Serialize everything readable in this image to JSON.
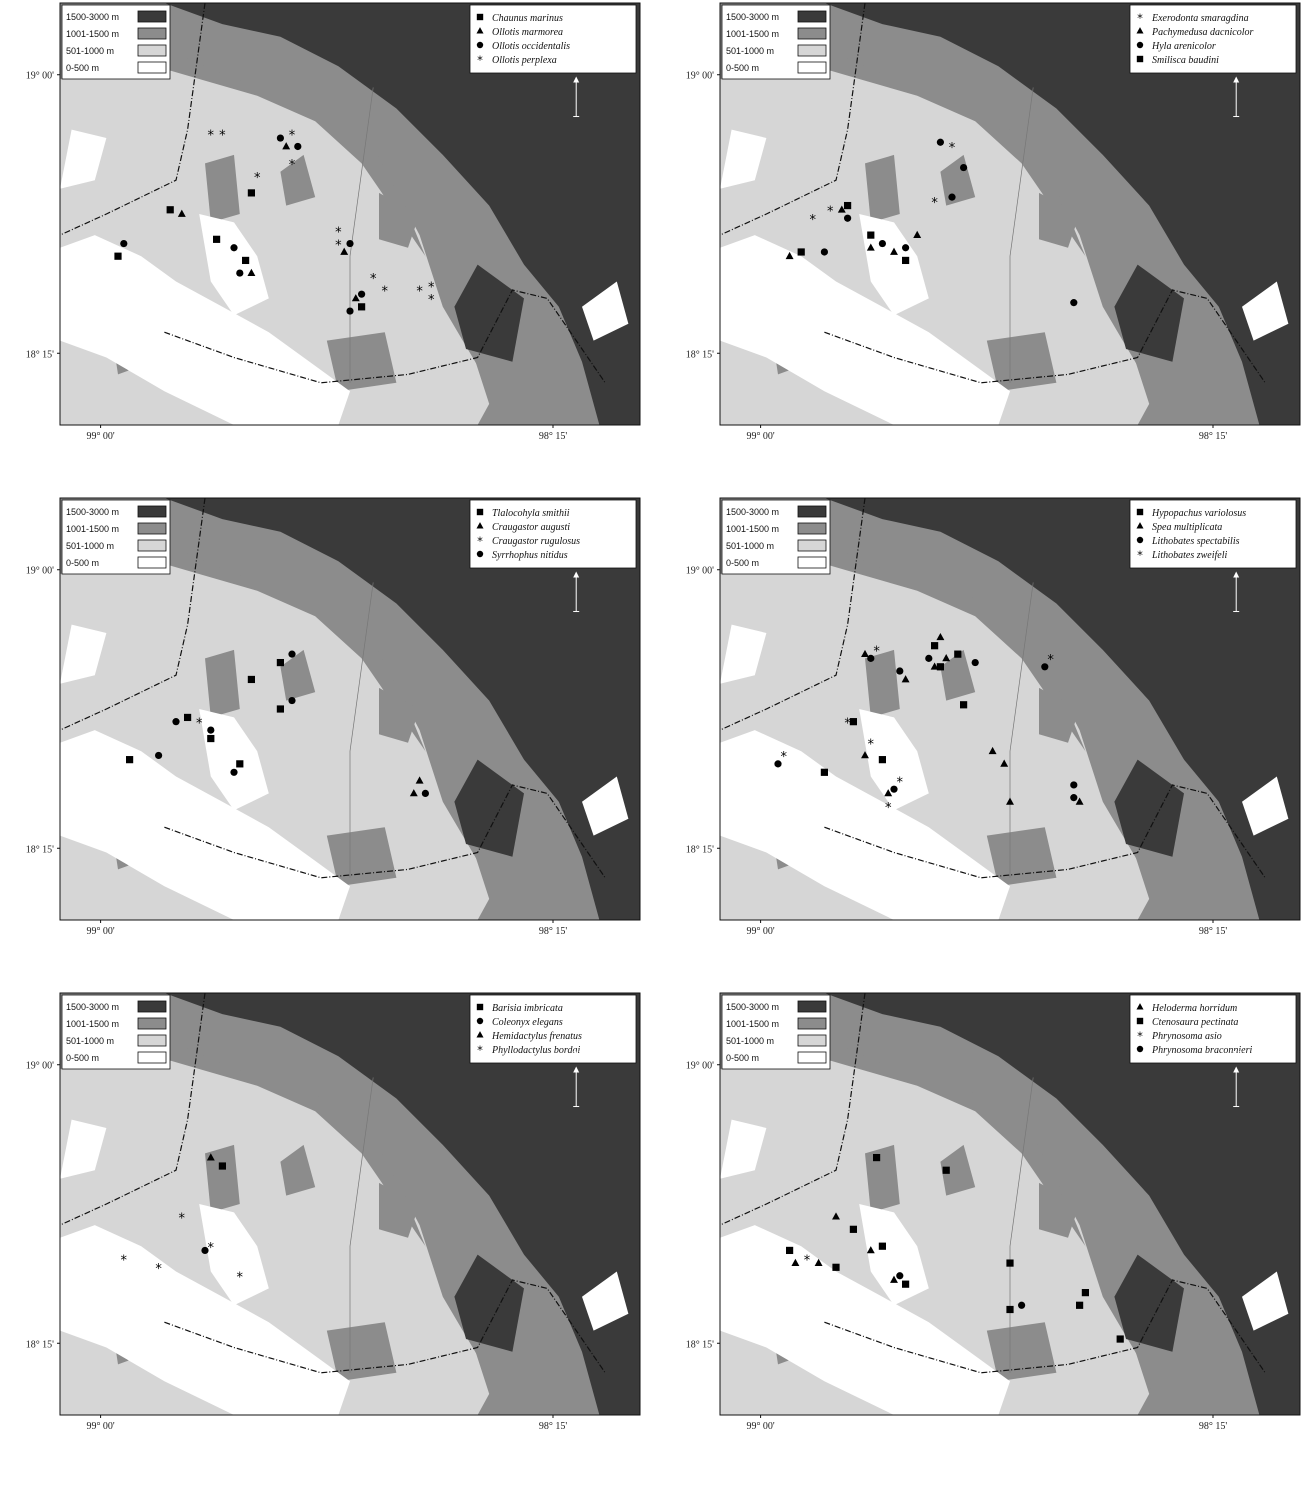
{
  "elevation_legend": [
    {
      "label": "1500-3000 m",
      "color": "#3a3a3a"
    },
    {
      "label": "1001-1500 m",
      "color": "#8c8c8c"
    },
    {
      "label": "501-1000 m",
      "color": "#d6d6d6"
    },
    {
      "label": "0-500 m",
      "color": "#ffffff"
    }
  ],
  "north_label": "N",
  "axes": {
    "lat_labels": [
      "19° 00'",
      "18° 15'"
    ],
    "lon_labels": [
      "99° 00'",
      "98° 15'"
    ]
  },
  "panels": [
    {
      "species": [
        {
          "symbol": "square",
          "name": "Chaunus marinus"
        },
        {
          "symbol": "triangle",
          "name": "Ollotis marmorea"
        },
        {
          "symbol": "circle",
          "name": "Ollotis occidentalis"
        },
        {
          "symbol": "star",
          "name": "Ollotis perplexa"
        }
      ],
      "points": [
        {
          "s": "square",
          "x": 0.1,
          "y": 0.6
        },
        {
          "s": "circle",
          "x": 0.11,
          "y": 0.57
        },
        {
          "s": "square",
          "x": 0.19,
          "y": 0.49
        },
        {
          "s": "triangle",
          "x": 0.21,
          "y": 0.5
        },
        {
          "s": "square",
          "x": 0.27,
          "y": 0.56
        },
        {
          "s": "circle",
          "x": 0.3,
          "y": 0.58
        },
        {
          "s": "square",
          "x": 0.32,
          "y": 0.61
        },
        {
          "s": "circle",
          "x": 0.31,
          "y": 0.64
        },
        {
          "s": "triangle",
          "x": 0.33,
          "y": 0.64
        },
        {
          "s": "square",
          "x": 0.33,
          "y": 0.45
        },
        {
          "s": "star",
          "x": 0.34,
          "y": 0.41
        },
        {
          "s": "star",
          "x": 0.26,
          "y": 0.31
        },
        {
          "s": "star",
          "x": 0.28,
          "y": 0.31
        },
        {
          "s": "circle",
          "x": 0.38,
          "y": 0.32
        },
        {
          "s": "star",
          "x": 0.4,
          "y": 0.31
        },
        {
          "s": "triangle",
          "x": 0.39,
          "y": 0.34
        },
        {
          "s": "circle",
          "x": 0.41,
          "y": 0.34
        },
        {
          "s": "star",
          "x": 0.4,
          "y": 0.38
        },
        {
          "s": "star",
          "x": 0.48,
          "y": 0.54
        },
        {
          "s": "star",
          "x": 0.48,
          "y": 0.57
        },
        {
          "s": "triangle",
          "x": 0.49,
          "y": 0.59
        },
        {
          "s": "circle",
          "x": 0.5,
          "y": 0.57
        },
        {
          "s": "star",
          "x": 0.54,
          "y": 0.65
        },
        {
          "s": "star",
          "x": 0.56,
          "y": 0.68
        },
        {
          "s": "triangle",
          "x": 0.51,
          "y": 0.7
        },
        {
          "s": "circle",
          "x": 0.52,
          "y": 0.69
        },
        {
          "s": "square",
          "x": 0.52,
          "y": 0.72
        },
        {
          "s": "circle",
          "x": 0.5,
          "y": 0.73
        },
        {
          "s": "star",
          "x": 0.62,
          "y": 0.68
        },
        {
          "s": "star",
          "x": 0.64,
          "y": 0.67
        },
        {
          "s": "star",
          "x": 0.64,
          "y": 0.7
        }
      ]
    },
    {
      "species": [
        {
          "symbol": "star",
          "name": "Exerodonta smaragdina"
        },
        {
          "symbol": "triangle",
          "name": "Pachymedusa dacnicolor"
        },
        {
          "symbol": "circle",
          "name": "Hyla arenicolor"
        },
        {
          "symbol": "square",
          "name": "Smilisca baudini"
        }
      ],
      "points": [
        {
          "s": "triangle",
          "x": 0.12,
          "y": 0.6
        },
        {
          "s": "square",
          "x": 0.14,
          "y": 0.59
        },
        {
          "s": "circle",
          "x": 0.18,
          "y": 0.59
        },
        {
          "s": "star",
          "x": 0.16,
          "y": 0.51
        },
        {
          "s": "star",
          "x": 0.19,
          "y": 0.49
        },
        {
          "s": "triangle",
          "x": 0.21,
          "y": 0.49
        },
        {
          "s": "circle",
          "x": 0.22,
          "y": 0.51
        },
        {
          "s": "square",
          "x": 0.22,
          "y": 0.48
        },
        {
          "s": "square",
          "x": 0.26,
          "y": 0.55
        },
        {
          "s": "triangle",
          "x": 0.26,
          "y": 0.58
        },
        {
          "s": "circle",
          "x": 0.28,
          "y": 0.57
        },
        {
          "s": "triangle",
          "x": 0.3,
          "y": 0.59
        },
        {
          "s": "circle",
          "x": 0.32,
          "y": 0.58
        },
        {
          "s": "square",
          "x": 0.32,
          "y": 0.61
        },
        {
          "s": "triangle",
          "x": 0.34,
          "y": 0.55
        },
        {
          "s": "circle",
          "x": 0.38,
          "y": 0.33
        },
        {
          "s": "star",
          "x": 0.4,
          "y": 0.34
        },
        {
          "s": "circle",
          "x": 0.42,
          "y": 0.39
        },
        {
          "s": "circle",
          "x": 0.4,
          "y": 0.46
        },
        {
          "s": "star",
          "x": 0.37,
          "y": 0.47
        },
        {
          "s": "circle",
          "x": 0.61,
          "y": 0.71
        }
      ]
    },
    {
      "species": [
        {
          "symbol": "square",
          "name": "Tlalocohyla smithii"
        },
        {
          "symbol": "triangle",
          "name": "Craugastor augusti"
        },
        {
          "symbol": "star",
          "name": "Craugastor rugulosus"
        },
        {
          "symbol": "circle",
          "name": "Syrrhophus nitidus"
        }
      ],
      "points": [
        {
          "s": "square",
          "x": 0.12,
          "y": 0.62
        },
        {
          "s": "circle",
          "x": 0.17,
          "y": 0.61
        },
        {
          "s": "circle",
          "x": 0.2,
          "y": 0.53
        },
        {
          "s": "square",
          "x": 0.22,
          "y": 0.52
        },
        {
          "s": "star",
          "x": 0.24,
          "y": 0.53
        },
        {
          "s": "circle",
          "x": 0.26,
          "y": 0.55
        },
        {
          "s": "square",
          "x": 0.26,
          "y": 0.57
        },
        {
          "s": "circle",
          "x": 0.3,
          "y": 0.65
        },
        {
          "s": "square",
          "x": 0.31,
          "y": 0.63
        },
        {
          "s": "square",
          "x": 0.33,
          "y": 0.43
        },
        {
          "s": "square",
          "x": 0.38,
          "y": 0.39
        },
        {
          "s": "circle",
          "x": 0.4,
          "y": 0.37
        },
        {
          "s": "square",
          "x": 0.38,
          "y": 0.5
        },
        {
          "s": "circle",
          "x": 0.4,
          "y": 0.48
        },
        {
          "s": "triangle",
          "x": 0.61,
          "y": 0.7
        },
        {
          "s": "triangle",
          "x": 0.62,
          "y": 0.67
        },
        {
          "s": "circle",
          "x": 0.63,
          "y": 0.7
        }
      ]
    },
    {
      "species": [
        {
          "symbol": "square",
          "name": "Hypopachus variolosus"
        },
        {
          "symbol": "triangle",
          "name": "Spea multiplicata"
        },
        {
          "symbol": "circle",
          "name": "Lithobates spectabilis"
        },
        {
          "symbol": "star",
          "name": "Lithobates zweifeli"
        }
      ],
      "points": [
        {
          "s": "circle",
          "x": 0.1,
          "y": 0.63
        },
        {
          "s": "star",
          "x": 0.11,
          "y": 0.61
        },
        {
          "s": "square",
          "x": 0.18,
          "y": 0.65
        },
        {
          "s": "square",
          "x": 0.23,
          "y": 0.53
        },
        {
          "s": "star",
          "x": 0.22,
          "y": 0.53
        },
        {
          "s": "triangle",
          "x": 0.25,
          "y": 0.61
        },
        {
          "s": "star",
          "x": 0.26,
          "y": 0.58
        },
        {
          "s": "square",
          "x": 0.28,
          "y": 0.62
        },
        {
          "s": "triangle",
          "x": 0.29,
          "y": 0.7
        },
        {
          "s": "circle",
          "x": 0.3,
          "y": 0.69
        },
        {
          "s": "star",
          "x": 0.31,
          "y": 0.67
        },
        {
          "s": "star",
          "x": 0.29,
          "y": 0.73
        },
        {
          "s": "triangle",
          "x": 0.25,
          "y": 0.37
        },
        {
          "s": "circle",
          "x": 0.26,
          "y": 0.38
        },
        {
          "s": "star",
          "x": 0.27,
          "y": 0.36
        },
        {
          "s": "circle",
          "x": 0.31,
          "y": 0.41
        },
        {
          "s": "triangle",
          "x": 0.32,
          "y": 0.43
        },
        {
          "s": "circle",
          "x": 0.36,
          "y": 0.38
        },
        {
          "s": "triangle",
          "x": 0.37,
          "y": 0.4
        },
        {
          "s": "square",
          "x": 0.37,
          "y": 0.35
        },
        {
          "s": "triangle",
          "x": 0.38,
          "y": 0.33
        },
        {
          "s": "square",
          "x": 0.38,
          "y": 0.4
        },
        {
          "s": "triangle",
          "x": 0.39,
          "y": 0.38
        },
        {
          "s": "square",
          "x": 0.41,
          "y": 0.37
        },
        {
          "s": "circle",
          "x": 0.44,
          "y": 0.39
        },
        {
          "s": "square",
          "x": 0.42,
          "y": 0.49
        },
        {
          "s": "circle",
          "x": 0.56,
          "y": 0.4
        },
        {
          "s": "star",
          "x": 0.57,
          "y": 0.38
        },
        {
          "s": "triangle",
          "x": 0.47,
          "y": 0.6
        },
        {
          "s": "triangle",
          "x": 0.49,
          "y": 0.63
        },
        {
          "s": "triangle",
          "x": 0.5,
          "y": 0.72
        },
        {
          "s": "circle",
          "x": 0.61,
          "y": 0.68
        },
        {
          "s": "circle",
          "x": 0.61,
          "y": 0.71
        },
        {
          "s": "triangle",
          "x": 0.62,
          "y": 0.72
        }
      ]
    },
    {
      "species": [
        {
          "symbol": "square",
          "name": "Barisia imbricata"
        },
        {
          "symbol": "circle",
          "name": "Coleonyx elegans"
        },
        {
          "symbol": "triangle",
          "name": "Hemidactylus frenatus"
        },
        {
          "symbol": "star",
          "name": "Phyllodactylus bordai"
        }
      ],
      "points": [
        {
          "s": "triangle",
          "x": 0.26,
          "y": 0.39
        },
        {
          "s": "square",
          "x": 0.28,
          "y": 0.41
        },
        {
          "s": "star",
          "x": 0.21,
          "y": 0.53
        },
        {
          "s": "star",
          "x": 0.11,
          "y": 0.63
        },
        {
          "s": "star",
          "x": 0.17,
          "y": 0.65
        },
        {
          "s": "circle",
          "x": 0.25,
          "y": 0.61
        },
        {
          "s": "star",
          "x": 0.26,
          "y": 0.6
        },
        {
          "s": "star",
          "x": 0.31,
          "y": 0.67
        }
      ]
    },
    {
      "species": [
        {
          "symbol": "triangle",
          "name": "Heloderma horridum"
        },
        {
          "symbol": "square",
          "name": "Ctenosaura pectinata"
        },
        {
          "symbol": "star",
          "name": "Phrynosoma asio"
        },
        {
          "symbol": "circle",
          "name": "Phrynosoma braconnieri"
        }
      ],
      "points": [
        {
          "s": "square",
          "x": 0.12,
          "y": 0.61
        },
        {
          "s": "triangle",
          "x": 0.13,
          "y": 0.64
        },
        {
          "s": "star",
          "x": 0.15,
          "y": 0.63
        },
        {
          "s": "triangle",
          "x": 0.17,
          "y": 0.64
        },
        {
          "s": "square",
          "x": 0.2,
          "y": 0.65
        },
        {
          "s": "triangle",
          "x": 0.2,
          "y": 0.53
        },
        {
          "s": "square",
          "x": 0.23,
          "y": 0.56
        },
        {
          "s": "triangle",
          "x": 0.26,
          "y": 0.61
        },
        {
          "s": "square",
          "x": 0.28,
          "y": 0.6
        },
        {
          "s": "triangle",
          "x": 0.3,
          "y": 0.68
        },
        {
          "s": "circle",
          "x": 0.31,
          "y": 0.67
        },
        {
          "s": "square",
          "x": 0.32,
          "y": 0.69
        },
        {
          "s": "square",
          "x": 0.27,
          "y": 0.39
        },
        {
          "s": "square",
          "x": 0.39,
          "y": 0.42
        },
        {
          "s": "square",
          "x": 0.5,
          "y": 0.64
        },
        {
          "s": "square",
          "x": 0.5,
          "y": 0.75
        },
        {
          "s": "circle",
          "x": 0.52,
          "y": 0.74
        },
        {
          "s": "square",
          "x": 0.62,
          "y": 0.74
        },
        {
          "s": "square",
          "x": 0.63,
          "y": 0.71
        },
        {
          "s": "square",
          "x": 0.69,
          "y": 0.82
        }
      ]
    }
  ]
}
